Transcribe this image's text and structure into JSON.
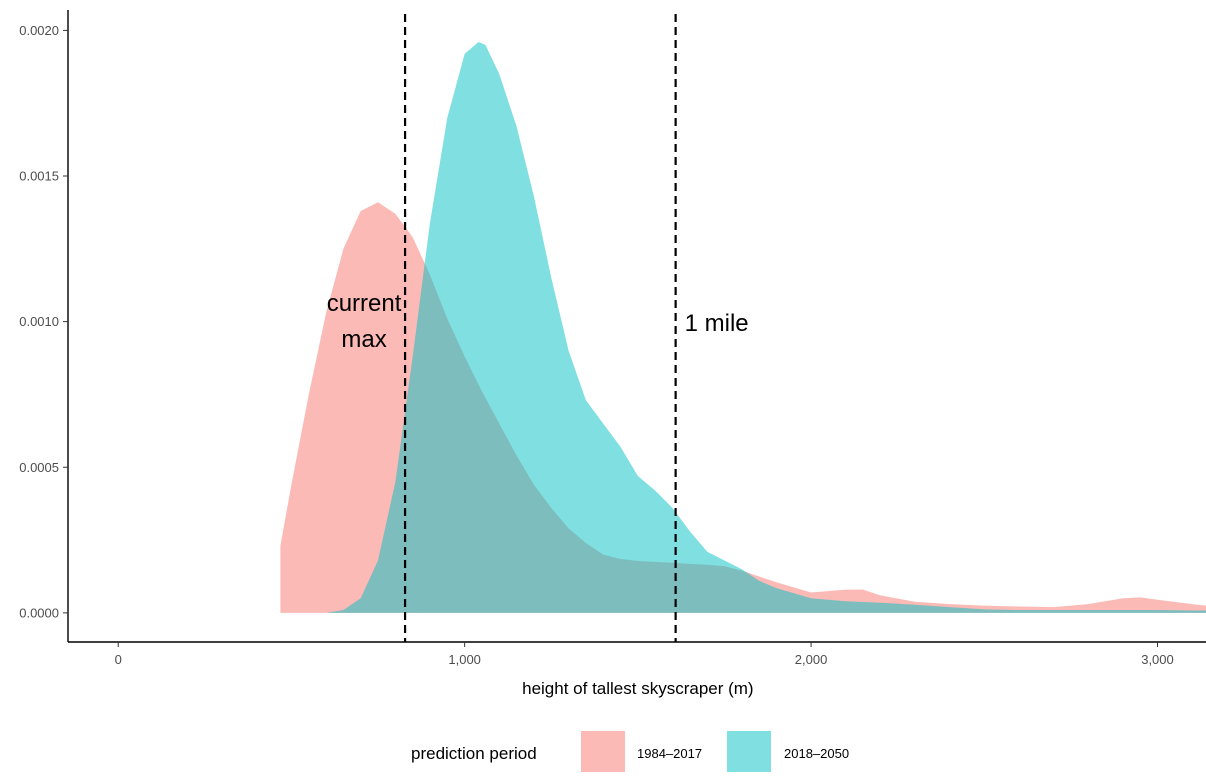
{
  "chart_data": {
    "type": "area",
    "title": "",
    "xlabel": "height of tallest skyscraper (m)",
    "ylabel": "",
    "xlim": [
      -145,
      3140
    ],
    "ylim": [
      -0.0001,
      0.00207
    ],
    "x_ticks": [
      0,
      1000,
      2000,
      3000
    ],
    "x_tick_labels": [
      "0",
      "1,000",
      "2,000",
      "3,000"
    ],
    "y_ticks": [
      0,
      0.0005,
      0.001,
      0.0015,
      0.002
    ],
    "y_tick_labels": [
      "0.0000",
      "0.0005",
      "0.0010",
      "0.0015",
      "0.0020"
    ],
    "grid": false,
    "legend": {
      "title": "prediction period",
      "position": "bottom"
    },
    "reference_lines": [
      {
        "x": 828,
        "label": "current\nmax",
        "label_lines": [
          "current",
          "max"
        ],
        "style": "dashed"
      },
      {
        "x": 1609,
        "label": "1 mile",
        "label_lines": [
          "1 mile"
        ],
        "style": "dashed"
      }
    ],
    "series": [
      {
        "name": "1984–2017",
        "color": "#F8766D",
        "opacity": 0.5,
        "x": [
          468,
          500,
          550,
          600,
          650,
          700,
          750,
          800,
          850,
          900,
          950,
          1000,
          1050,
          1100,
          1150,
          1200,
          1250,
          1300,
          1350,
          1400,
          1450,
          1500,
          1550,
          1600,
          1650,
          1700,
          1750,
          1800,
          1850,
          1900,
          2000,
          2100,
          2150,
          2200,
          2300,
          2400,
          2500,
          2600,
          2700,
          2800,
          2900,
          2950,
          3000,
          3100,
          3140
        ],
        "values": [
          0.00023,
          0.00044,
          0.00075,
          0.00103,
          0.00125,
          0.00138,
          0.00141,
          0.00137,
          0.00129,
          0.00116,
          0.00101,
          0.00088,
          0.00076,
          0.00065,
          0.00054,
          0.00044,
          0.00036,
          0.00029,
          0.00024,
          0.0002,
          0.000185,
          0.000178,
          0.000175,
          0.000172,
          0.000168,
          0.000165,
          0.00016,
          0.000145,
          0.000125,
          0.000105,
          7e-05,
          8e-05,
          8e-05,
          6e-05,
          3.8e-05,
          3e-05,
          2.5e-05,
          2.2e-05,
          2e-05,
          3e-05,
          5e-05,
          5.3e-05,
          4.5e-05,
          3e-05,
          2.5e-05
        ]
      },
      {
        "name": "2018–2050",
        "color": "#00BFC4",
        "opacity": 0.5,
        "x": [
          600,
          650,
          700,
          750,
          800,
          850,
          900,
          950,
          1000,
          1040,
          1060,
          1100,
          1150,
          1200,
          1250,
          1300,
          1350,
          1400,
          1450,
          1500,
          1550,
          1600,
          1650,
          1700,
          1750,
          1800,
          1850,
          1900,
          2000,
          2100,
          2200,
          2300,
          2400,
          2500,
          2600,
          2700,
          2800,
          2900,
          3000,
          3100,
          3140
        ],
        "values": [
          0.0,
          1e-05,
          5e-05,
          0.00018,
          0.00045,
          0.00088,
          0.00134,
          0.0017,
          0.00192,
          0.00196,
          0.00195,
          0.00185,
          0.00167,
          0.00143,
          0.00115,
          0.0009,
          0.00073,
          0.00065,
          0.00057,
          0.00047,
          0.00042,
          0.00036,
          0.00028,
          0.00021,
          0.00018,
          0.00015,
          0.00011,
          8.5e-05,
          5e-05,
          4e-05,
          3.5e-05,
          2.8e-05,
          2e-05,
          1.2e-05,
          1e-05,
          1e-05,
          1e-05,
          1e-05,
          1e-05,
          8e-06,
          8e-06
        ]
      }
    ]
  }
}
